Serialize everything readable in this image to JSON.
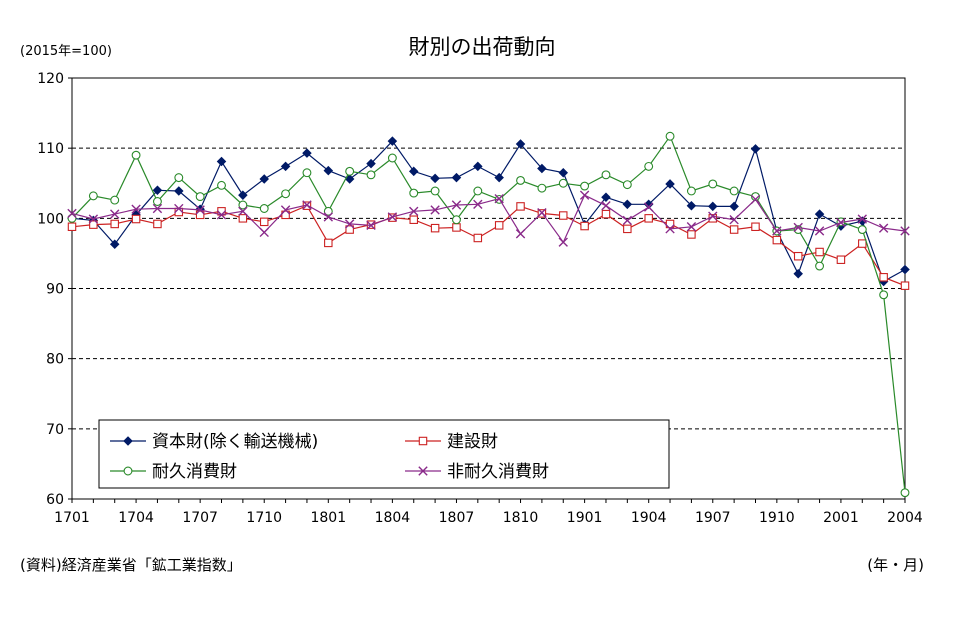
{
  "chart_data": {
    "type": "line",
    "title": "財別の出荷動向",
    "unit_label": "(2015年=100)",
    "source": "(資料)経済産業省「鉱工業指数」",
    "xlabel": "(年・月)",
    "ylim": [
      60,
      120
    ],
    "yticks": [
      60,
      70,
      80,
      90,
      100,
      110,
      120
    ],
    "grid": "horizontal dashed",
    "legend": "bottom-left inside",
    "x": [
      "1701",
      "1702",
      "1703",
      "1704",
      "1705",
      "1706",
      "1707",
      "1708",
      "1709",
      "1710",
      "1711",
      "1712",
      "1801",
      "1802",
      "1803",
      "1804",
      "1805",
      "1806",
      "1807",
      "1808",
      "1809",
      "1810",
      "1811",
      "1812",
      "1901",
      "1902",
      "1903",
      "1904",
      "1905",
      "1906",
      "1907",
      "1908",
      "1909",
      "1910",
      "1911",
      "1912",
      "2001",
      "2002",
      "2003",
      "2004"
    ],
    "xtick_labels": [
      "1701",
      "1704",
      "1707",
      "1710",
      "1801",
      "1804",
      "1807",
      "1810",
      "1901",
      "1904",
      "1907",
      "1910",
      "2001",
      "2004"
    ],
    "series": [
      {
        "name": "資本財(除く輸送機械)",
        "color": "#001a66",
        "marker": "diamond",
        "values": [
          100.0,
          99.7,
          96.3,
          100.5,
          104.0,
          103.9,
          101.3,
          108.1,
          103.3,
          105.6,
          107.4,
          109.3,
          106.8,
          105.6,
          107.8,
          111.0,
          106.7,
          105.7,
          105.8,
          107.4,
          105.8,
          110.6,
          107.1,
          106.5,
          99.1,
          103.0,
          102.0,
          102.0,
          104.9,
          101.8,
          101.7,
          101.7,
          109.9,
          98.2,
          92.1,
          100.6,
          98.9,
          99.6,
          91.0,
          92.7
        ]
      },
      {
        "name": "建設財",
        "color": "#cc2222",
        "marker": "square",
        "values": [
          98.8,
          99.1,
          99.2,
          99.9,
          99.2,
          100.9,
          100.5,
          101.0,
          100.0,
          99.5,
          100.5,
          101.8,
          96.5,
          98.4,
          99.1,
          100.1,
          99.8,
          98.6,
          98.7,
          97.2,
          99.0,
          101.7,
          100.7,
          100.4,
          98.9,
          100.6,
          98.5,
          100.0,
          99.2,
          97.7,
          100.0,
          98.4,
          98.8,
          96.9,
          94.6,
          95.2,
          94.1,
          96.4,
          91.6,
          90.4
        ]
      },
      {
        "name": "耐久消費財",
        "color": "#2a8a2a",
        "marker": "circle",
        "values": [
          100.0,
          103.2,
          102.6,
          109.0,
          102.4,
          105.8,
          103.1,
          104.7,
          101.9,
          101.4,
          103.5,
          106.5,
          101.0,
          106.7,
          106.2,
          108.6,
          103.6,
          103.9,
          99.8,
          103.9,
          102.7,
          105.4,
          104.3,
          105.0,
          104.6,
          106.2,
          104.8,
          107.4,
          111.7,
          103.9,
          104.9,
          103.9,
          103.1,
          98.2,
          98.4,
          93.2,
          99.5,
          98.4,
          89.1,
          60.9
        ]
      },
      {
        "name": "非耐久消費財",
        "color": "#8a2a8a",
        "marker": "x",
        "values": [
          100.7,
          99.9,
          100.6,
          101.3,
          101.4,
          101.4,
          101.2,
          100.5,
          101.0,
          98.0,
          101.2,
          101.9,
          100.2,
          99.2,
          99.0,
          100.2,
          101.0,
          101.2,
          101.9,
          102.0,
          102.8,
          97.8,
          100.8,
          96.6,
          103.3,
          101.8,
          99.7,
          101.6,
          98.5,
          98.8,
          100.3,
          99.8,
          102.7,
          98.2,
          98.7,
          98.2,
          99.4,
          99.9,
          98.6,
          98.2
        ]
      }
    ]
  }
}
